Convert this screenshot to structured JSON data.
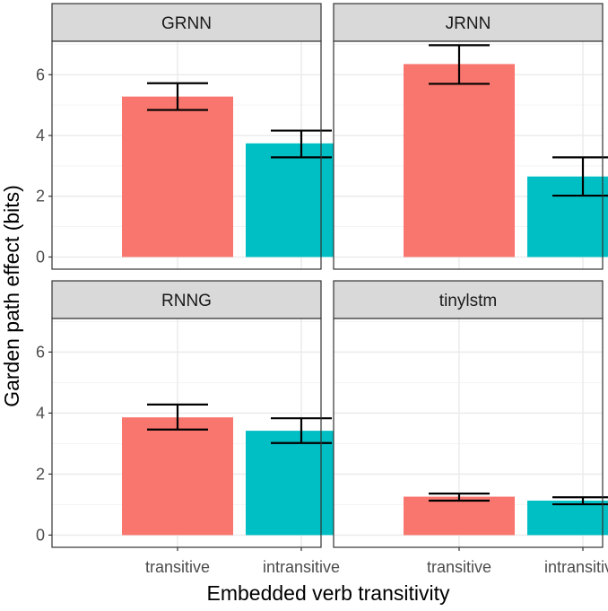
{
  "chart_data": {
    "type": "bar",
    "xlabel": "Embedded verb transitivity",
    "ylabel": "Garden path effect (bits)",
    "ylim": [
      -0.4,
      7.1
    ],
    "yticks": [
      0,
      2,
      4,
      6
    ],
    "categories": [
      "transitive",
      "intransitive"
    ],
    "colors": {
      "transitive": "#F8766D",
      "intransitive": "#00BFC4"
    },
    "facets": [
      {
        "name": "GRNN",
        "values": [
          5.28,
          3.74
        ],
        "errors": [
          [
            4.84,
            5.72
          ],
          [
            3.28,
            4.16
          ]
        ]
      },
      {
        "name": "JRNN",
        "values": [
          6.35,
          2.65
        ],
        "errors": [
          [
            5.7,
            6.97
          ],
          [
            2.02,
            3.28
          ]
        ]
      },
      {
        "name": "RNNG",
        "values": [
          3.86,
          3.42
        ],
        "errors": [
          [
            3.46,
            4.28
          ],
          [
            3.02,
            3.83
          ]
        ]
      },
      {
        "name": "tinylstm",
        "values": [
          1.26,
          1.13
        ],
        "errors": [
          [
            1.13,
            1.36
          ],
          [
            1.01,
            1.24
          ]
        ]
      }
    ]
  }
}
